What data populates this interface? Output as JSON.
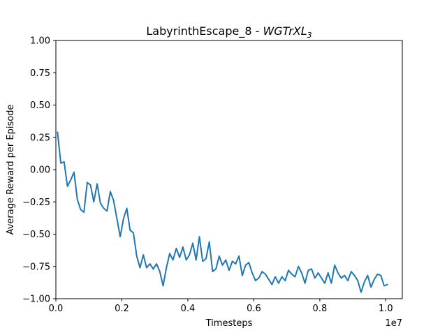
{
  "chart_data": {
    "type": "line",
    "title_main": "LabyrinthEscape_8 - ",
    "title_model": "WGTrXL",
    "title_subscript": "3",
    "xlabel": "Timesteps",
    "ylabel": "Average Reward per Episode",
    "x_offset_label": "1e7",
    "xlim": [
      0,
      1.05
    ],
    "ylim": [
      -1.0,
      1.0
    ],
    "x_ticks": [
      0.0,
      0.2,
      0.4,
      0.6,
      0.8,
      1.0
    ],
    "x_tick_labels": [
      "0.0",
      "0.2",
      "0.4",
      "0.6",
      "0.8",
      "1.0"
    ],
    "y_ticks": [
      -1.0,
      -0.75,
      -0.5,
      -0.25,
      0.0,
      0.25,
      0.5,
      0.75,
      1.0
    ],
    "y_tick_labels": [
      "−1.00",
      "−0.75",
      "−0.50",
      "−0.25",
      "0.00",
      "0.25",
      "0.50",
      "0.75",
      "1.00"
    ],
    "grid": false,
    "color": "#1f77b4",
    "series": [
      {
        "x": [
          0.005,
          0.015,
          0.025,
          0.035,
          0.045,
          0.055,
          0.065,
          0.075,
          0.085,
          0.095,
          0.105,
          0.115,
          0.125,
          0.135,
          0.145,
          0.155,
          0.165,
          0.175,
          0.185,
          0.195,
          0.205,
          0.215,
          0.225,
          0.235,
          0.245,
          0.255,
          0.265,
          0.275,
          0.285,
          0.295,
          0.305,
          0.315,
          0.325,
          0.335,
          0.345,
          0.355,
          0.365,
          0.375,
          0.385,
          0.395,
          0.405,
          0.415,
          0.425,
          0.435,
          0.445,
          0.455,
          0.465,
          0.475,
          0.485,
          0.495,
          0.505,
          0.515,
          0.525,
          0.535,
          0.545,
          0.555,
          0.565,
          0.575,
          0.585,
          0.595,
          0.605,
          0.615,
          0.625,
          0.635,
          0.645,
          0.655,
          0.665,
          0.675,
          0.685,
          0.695,
          0.705,
          0.715,
          0.725,
          0.735,
          0.745,
          0.755,
          0.765,
          0.775,
          0.785,
          0.795,
          0.805,
          0.815,
          0.825,
          0.835,
          0.845,
          0.855,
          0.865,
          0.875,
          0.885,
          0.895,
          0.905,
          0.915,
          0.925,
          0.935,
          0.945,
          0.955,
          0.965,
          0.975,
          0.985,
          0.995,
          1.005
        ],
        "y": [
          0.29,
          0.05,
          0.06,
          -0.13,
          -0.08,
          -0.02,
          -0.23,
          -0.31,
          -0.33,
          -0.1,
          -0.12,
          -0.25,
          -0.11,
          -0.26,
          -0.3,
          -0.32,
          -0.17,
          -0.24,
          -0.38,
          -0.52,
          -0.38,
          -0.3,
          -0.47,
          -0.49,
          -0.67,
          -0.76,
          -0.66,
          -0.76,
          -0.73,
          -0.77,
          -0.73,
          -0.79,
          -0.9,
          -0.76,
          -0.65,
          -0.7,
          -0.61,
          -0.68,
          -0.6,
          -0.7,
          -0.66,
          -0.57,
          -0.7,
          -0.52,
          -0.71,
          -0.69,
          -0.56,
          -0.79,
          -0.77,
          -0.67,
          -0.74,
          -0.7,
          -0.78,
          -0.71,
          -0.73,
          -0.67,
          -0.82,
          -0.74,
          -0.72,
          -0.8,
          -0.86,
          -0.84,
          -0.79,
          -0.81,
          -0.85,
          -0.89,
          -0.83,
          -0.88,
          -0.83,
          -0.86,
          -0.78,
          -0.81,
          -0.83,
          -0.75,
          -0.8,
          -0.88,
          -0.78,
          -0.77,
          -0.84,
          -0.8,
          -0.84,
          -0.88,
          -0.8,
          -0.88,
          -0.74,
          -0.8,
          -0.84,
          -0.82,
          -0.86,
          -0.79,
          -0.82,
          -0.86,
          -0.95,
          -0.87,
          -0.82,
          -0.91,
          -0.85,
          -0.81,
          -0.82,
          -0.9,
          -0.89
        ]
      }
    ]
  }
}
